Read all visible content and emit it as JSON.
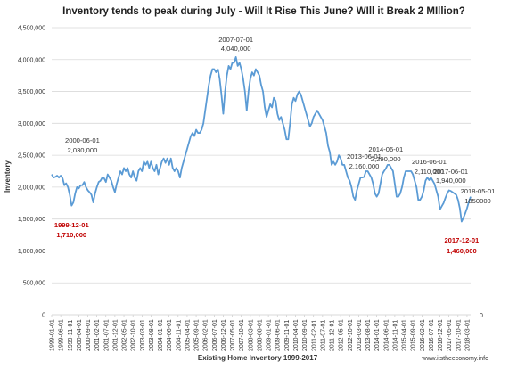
{
  "chart_data": {
    "type": "line",
    "title": "Inventory tends to peak during July - Will It Rise This June? Will it Break 2 Million?",
    "xlabel": "Existing Home Inventory 1999-2017",
    "ylabel": "Inventory",
    "ylim": [
      0,
      4500000
    ],
    "yticks": [
      "0",
      "500,000",
      "1,000,000",
      "1,500,000",
      "2,000,000",
      "2,500,000",
      "3,000,000",
      "3,500,000",
      "4,000,000",
      "4,500,000"
    ],
    "y_tick_values": [
      0,
      500000,
      1000000,
      1500000,
      2000000,
      2500000,
      3000000,
      3500000,
      4000000,
      4500000
    ],
    "right_axis_label": "0",
    "x_start": "1999-01-01",
    "x_end": "2018-05-01",
    "xticks": [
      "1999-01-01",
      "1999-06-01",
      "1999-11-01",
      "2000-04-01",
      "2000-09-01",
      "2001-02-01",
      "2001-07-01",
      "2001-12-01",
      "2002-05-01",
      "2002-10-01",
      "2003-03-01",
      "2003-08-01",
      "2004-01-01",
      "2004-06-01",
      "2004-11-01",
      "2005-04-01",
      "2005-09-01",
      "2006-02-01",
      "2006-07-01",
      "2006-12-01",
      "2007-05-01",
      "2007-10-01",
      "2008-03-01",
      "2008-08-01",
      "2009-01-01",
      "2009-06-01",
      "2009-11-01",
      "2010-04-01",
      "2010-09-01",
      "2011-02-01",
      "2011-07-01",
      "2011-12-01",
      "2012-05-01",
      "2012-10-01",
      "2013-03-01",
      "2013-08-01",
      "2014-01-01",
      "2014-06-01",
      "2014-11-01",
      "2015-04-01",
      "2015-09-01",
      "2016-02-01",
      "2016-07-01",
      "2016-12-01",
      "2017-05-01",
      "2017-10-01",
      "2018-03-01"
    ],
    "line_color": "#5b9bd5",
    "series": [
      {
        "values": [
          [
            "1999-01-01",
            2200000
          ],
          [
            "1999-02-01",
            2150000
          ],
          [
            "1999-03-01",
            2160000
          ],
          [
            "1999-04-01",
            2180000
          ],
          [
            "1999-05-01",
            2150000
          ],
          [
            "1999-06-01",
            2180000
          ],
          [
            "1999-07-01",
            2140000
          ],
          [
            "1999-08-01",
            2030000
          ],
          [
            "1999-09-01",
            2060000
          ],
          [
            "1999-10-01",
            2000000
          ],
          [
            "1999-11-01",
            1880000
          ],
          [
            "1999-12-01",
            1710000
          ],
          [
            "2000-01-01",
            1760000
          ],
          [
            "2000-02-01",
            1900000
          ],
          [
            "2000-03-01",
            2000000
          ],
          [
            "2000-04-01",
            1980000
          ],
          [
            "2000-05-01",
            2030000
          ],
          [
            "2000-06-01",
            2030000
          ],
          [
            "2000-07-01",
            2080000
          ],
          [
            "2000-08-01",
            2000000
          ],
          [
            "2000-09-01",
            1950000
          ],
          [
            "2000-10-01",
            1920000
          ],
          [
            "2000-11-01",
            1880000
          ],
          [
            "2000-12-01",
            1760000
          ],
          [
            "2001-01-01",
            1900000
          ],
          [
            "2001-02-01",
            2000000
          ],
          [
            "2001-03-01",
            2080000
          ],
          [
            "2001-04-01",
            2100000
          ],
          [
            "2001-05-01",
            2150000
          ],
          [
            "2001-06-01",
            2140000
          ],
          [
            "2001-07-01",
            2080000
          ],
          [
            "2001-08-01",
            2200000
          ],
          [
            "2001-09-01",
            2150000
          ],
          [
            "2001-10-01",
            2100000
          ],
          [
            "2001-11-01",
            2000000
          ],
          [
            "2001-12-01",
            1920000
          ],
          [
            "2002-01-01",
            2050000
          ],
          [
            "2002-02-01",
            2150000
          ],
          [
            "2002-03-01",
            2250000
          ],
          [
            "2002-04-01",
            2200000
          ],
          [
            "2002-05-01",
            2300000
          ],
          [
            "2002-06-01",
            2250000
          ],
          [
            "2002-07-01",
            2300000
          ],
          [
            "2002-08-01",
            2200000
          ],
          [
            "2002-09-01",
            2150000
          ],
          [
            "2002-10-01",
            2250000
          ],
          [
            "2002-11-01",
            2150000
          ],
          [
            "2002-12-01",
            2100000
          ],
          [
            "2003-01-01",
            2250000
          ],
          [
            "2003-02-01",
            2300000
          ],
          [
            "2003-03-01",
            2250000
          ],
          [
            "2003-04-01",
            2400000
          ],
          [
            "2003-05-01",
            2350000
          ],
          [
            "2003-06-01",
            2400000
          ],
          [
            "2003-07-01",
            2300000
          ],
          [
            "2003-08-01",
            2400000
          ],
          [
            "2003-09-01",
            2300000
          ],
          [
            "2003-10-01",
            2250000
          ],
          [
            "2003-11-01",
            2350000
          ],
          [
            "2003-12-01",
            2200000
          ],
          [
            "2004-01-01",
            2300000
          ],
          [
            "2004-02-01",
            2400000
          ],
          [
            "2004-03-01",
            2450000
          ],
          [
            "2004-04-01",
            2380000
          ],
          [
            "2004-05-01",
            2450000
          ],
          [
            "2004-06-01",
            2350000
          ],
          [
            "2004-07-01",
            2450000
          ],
          [
            "2004-08-01",
            2300000
          ],
          [
            "2004-09-01",
            2250000
          ],
          [
            "2004-10-01",
            2300000
          ],
          [
            "2004-11-01",
            2250000
          ],
          [
            "2004-12-01",
            2150000
          ],
          [
            "2005-01-01",
            2300000
          ],
          [
            "2005-02-01",
            2400000
          ],
          [
            "2005-03-01",
            2500000
          ],
          [
            "2005-04-01",
            2600000
          ],
          [
            "2005-05-01",
            2700000
          ],
          [
            "2005-06-01",
            2800000
          ],
          [
            "2005-07-01",
            2850000
          ],
          [
            "2005-08-01",
            2800000
          ],
          [
            "2005-09-01",
            2900000
          ],
          [
            "2005-10-01",
            2850000
          ],
          [
            "2005-11-01",
            2850000
          ],
          [
            "2005-12-01",
            2900000
          ],
          [
            "2006-01-01",
            3000000
          ],
          [
            "2006-02-01",
            3200000
          ],
          [
            "2006-03-01",
            3400000
          ],
          [
            "2006-04-01",
            3600000
          ],
          [
            "2006-05-01",
            3750000
          ],
          [
            "2006-06-01",
            3850000
          ],
          [
            "2006-07-01",
            3850000
          ],
          [
            "2006-08-01",
            3800000
          ],
          [
            "2006-09-01",
            3850000
          ],
          [
            "2006-10-01",
            3700000
          ],
          [
            "2006-11-01",
            3450000
          ],
          [
            "2006-12-01",
            3150000
          ],
          [
            "2007-01-01",
            3500000
          ],
          [
            "2007-02-01",
            3750000
          ],
          [
            "2007-03-01",
            3900000
          ],
          [
            "2007-04-01",
            3850000
          ],
          [
            "2007-05-01",
            3950000
          ],
          [
            "2007-06-01",
            3950000
          ],
          [
            "2007-07-01",
            4040000
          ],
          [
            "2007-08-01",
            3900000
          ],
          [
            "2007-09-01",
            3950000
          ],
          [
            "2007-10-01",
            3850000
          ],
          [
            "2007-11-01",
            3700000
          ],
          [
            "2007-12-01",
            3500000
          ],
          [
            "2008-01-01",
            3200000
          ],
          [
            "2008-02-01",
            3500000
          ],
          [
            "2008-03-01",
            3700000
          ],
          [
            "2008-04-01",
            3800000
          ],
          [
            "2008-05-01",
            3750000
          ],
          [
            "2008-06-01",
            3850000
          ],
          [
            "2008-07-01",
            3800000
          ],
          [
            "2008-08-01",
            3750000
          ],
          [
            "2008-09-01",
            3600000
          ],
          [
            "2008-10-01",
            3500000
          ],
          [
            "2008-11-01",
            3250000
          ],
          [
            "2008-12-01",
            3100000
          ],
          [
            "2009-01-01",
            3200000
          ],
          [
            "2009-02-01",
            3300000
          ],
          [
            "2009-03-01",
            3250000
          ],
          [
            "2009-04-01",
            3400000
          ],
          [
            "2009-05-01",
            3350000
          ],
          [
            "2009-06-01",
            3150000
          ],
          [
            "2009-07-01",
            3050000
          ],
          [
            "2009-08-01",
            3100000
          ],
          [
            "2009-09-01",
            3000000
          ],
          [
            "2009-10-01",
            2900000
          ],
          [
            "2009-11-01",
            2750000
          ],
          [
            "2009-12-01",
            2750000
          ],
          [
            "2010-01-01",
            3000000
          ],
          [
            "2010-02-01",
            3300000
          ],
          [
            "2010-03-01",
            3400000
          ],
          [
            "2010-04-01",
            3350000
          ],
          [
            "2010-05-01",
            3450000
          ],
          [
            "2010-06-01",
            3500000
          ],
          [
            "2010-07-01",
            3450000
          ],
          [
            "2010-08-01",
            3350000
          ],
          [
            "2010-09-01",
            3250000
          ],
          [
            "2010-10-01",
            3150000
          ],
          [
            "2010-11-01",
            3050000
          ],
          [
            "2010-12-01",
            2950000
          ],
          [
            "2011-01-01",
            3000000
          ],
          [
            "2011-02-01",
            3100000
          ],
          [
            "2011-03-01",
            3150000
          ],
          [
            "2011-04-01",
            3200000
          ],
          [
            "2011-05-01",
            3150000
          ],
          [
            "2011-06-01",
            3100000
          ],
          [
            "2011-07-01",
            3050000
          ],
          [
            "2011-08-01",
            2950000
          ],
          [
            "2011-09-01",
            2850000
          ],
          [
            "2011-10-01",
            2650000
          ],
          [
            "2011-11-01",
            2550000
          ],
          [
            "2011-12-01",
            2350000
          ],
          [
            "2012-01-01",
            2400000
          ],
          [
            "2012-02-01",
            2350000
          ],
          [
            "2012-03-01",
            2400000
          ],
          [
            "2012-04-01",
            2500000
          ],
          [
            "2012-05-01",
            2450000
          ],
          [
            "2012-06-01",
            2350000
          ],
          [
            "2012-07-01",
            2350000
          ],
          [
            "2012-08-01",
            2250000
          ],
          [
            "2012-09-01",
            2150000
          ],
          [
            "2012-10-01",
            2100000
          ],
          [
            "2012-11-01",
            2000000
          ],
          [
            "2012-12-01",
            1850000
          ],
          [
            "2013-01-01",
            1800000
          ],
          [
            "2013-02-01",
            1950000
          ],
          [
            "2013-03-01",
            2050000
          ],
          [
            "2013-04-01",
            2150000
          ],
          [
            "2013-05-01",
            2150000
          ],
          [
            "2013-06-01",
            2160000
          ],
          [
            "2013-07-01",
            2250000
          ],
          [
            "2013-08-01",
            2250000
          ],
          [
            "2013-09-01",
            2200000
          ],
          [
            "2013-10-01",
            2150000
          ],
          [
            "2013-11-01",
            2050000
          ],
          [
            "2013-12-01",
            1900000
          ],
          [
            "2014-01-01",
            1850000
          ],
          [
            "2014-02-01",
            1900000
          ],
          [
            "2014-03-01",
            2050000
          ],
          [
            "2014-04-01",
            2200000
          ],
          [
            "2014-05-01",
            2250000
          ],
          [
            "2014-06-01",
            2290000
          ],
          [
            "2014-07-01",
            2350000
          ],
          [
            "2014-08-01",
            2350000
          ],
          [
            "2014-09-01",
            2300000
          ],
          [
            "2014-10-01",
            2250000
          ],
          [
            "2014-11-01",
            2050000
          ],
          [
            "2014-12-01",
            1850000
          ],
          [
            "2015-01-01",
            1850000
          ],
          [
            "2015-02-01",
            1900000
          ],
          [
            "2015-03-01",
            2000000
          ],
          [
            "2015-04-01",
            2150000
          ],
          [
            "2015-05-01",
            2250000
          ],
          [
            "2015-06-01",
            2250000
          ],
          [
            "2015-07-01",
            2250000
          ],
          [
            "2015-08-01",
            2250000
          ],
          [
            "2015-09-01",
            2200000
          ],
          [
            "2015-10-01",
            2100000
          ],
          [
            "2015-11-01",
            2000000
          ],
          [
            "2015-12-01",
            1800000
          ],
          [
            "2016-01-01",
            1800000
          ],
          [
            "2016-02-01",
            1850000
          ],
          [
            "2016-03-01",
            1950000
          ],
          [
            "2016-04-01",
            2100000
          ],
          [
            "2016-05-01",
            2150000
          ],
          [
            "2016-06-01",
            2110000
          ],
          [
            "2016-07-01",
            2150000
          ],
          [
            "2016-08-01",
            2100000
          ],
          [
            "2016-09-01",
            2050000
          ],
          [
            "2016-10-01",
            1950000
          ],
          [
            "2016-11-01",
            1850000
          ],
          [
            "2016-12-01",
            1650000
          ],
          [
            "2017-01-01",
            1700000
          ],
          [
            "2017-02-01",
            1750000
          ],
          [
            "2017-03-01",
            1830000
          ],
          [
            "2017-04-01",
            1900000
          ],
          [
            "2017-05-01",
            1950000
          ],
          [
            "2017-06-01",
            1940000
          ],
          [
            "2017-07-01",
            1920000
          ],
          [
            "2017-08-01",
            1900000
          ],
          [
            "2017-09-01",
            1880000
          ],
          [
            "2017-10-01",
            1800000
          ],
          [
            "2017-11-01",
            1670000
          ],
          [
            "2017-12-01",
            1460000
          ],
          [
            "2018-01-01",
            1520000
          ],
          [
            "2018-02-01",
            1590000
          ],
          [
            "2018-03-01",
            1670000
          ],
          [
            "2018-04-01",
            1770000
          ],
          [
            "2018-05-01",
            1850000
          ]
        ]
      }
    ],
    "annotations": [
      {
        "date": "2007-07-01",
        "value": "4,040,000",
        "color": "#333333"
      },
      {
        "date": "2000-06-01",
        "value": "2,030,000",
        "color": "#333333"
      },
      {
        "date": "1999-12-01",
        "value": "1,710,000",
        "color": "#c00000"
      },
      {
        "date": "2013-06-01",
        "value": "2,160,000",
        "color": "#333333"
      },
      {
        "date": "2014-06-01",
        "value": "2,290,000",
        "color": "#333333"
      },
      {
        "date": "2016-06-01",
        "value": "2,110,000",
        "color": "#333333"
      },
      {
        "date": "2017-06-01",
        "value": "1,940,000",
        "color": "#333333"
      },
      {
        "date": "2018-05-01",
        "value": "1850000",
        "color": "#333333"
      },
      {
        "date": "2017-12-01",
        "value": "1,460,000",
        "color": "#c00000"
      }
    ]
  },
  "title_display": "Inventory tends to peak during July - Will It Rise This June? WIll it Break 2 MIllion?",
  "watermark": "www.itstheeconomy.info"
}
